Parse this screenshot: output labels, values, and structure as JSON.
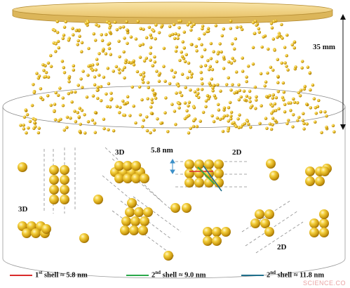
{
  "labels": {
    "height": "35 mm",
    "distance": "5.8 nm",
    "d3_top": "3D",
    "d3_left": "3D",
    "d2_top": "2D",
    "d2_bottom": "2D"
  },
  "legend": [
    {
      "ordinal": "1",
      "suffix": "st",
      "text": " shell ≈ 5.8 nm",
      "color": "#d92b2b"
    },
    {
      "ordinal": "2",
      "suffix": "nd",
      "text": " shell ≈ 9.0 nm",
      "color": "#2aa84a"
    },
    {
      "ordinal": "2",
      "suffix": "nd",
      "text": " shell ≈ 11.8 nm",
      "color": "#1f6f8b"
    }
  ],
  "watermark": "SCIENCE.CO",
  "colors": {
    "particle": "#e8b923",
    "plate": "#f2d38a",
    "plate_edge": "#c9a24a"
  }
}
